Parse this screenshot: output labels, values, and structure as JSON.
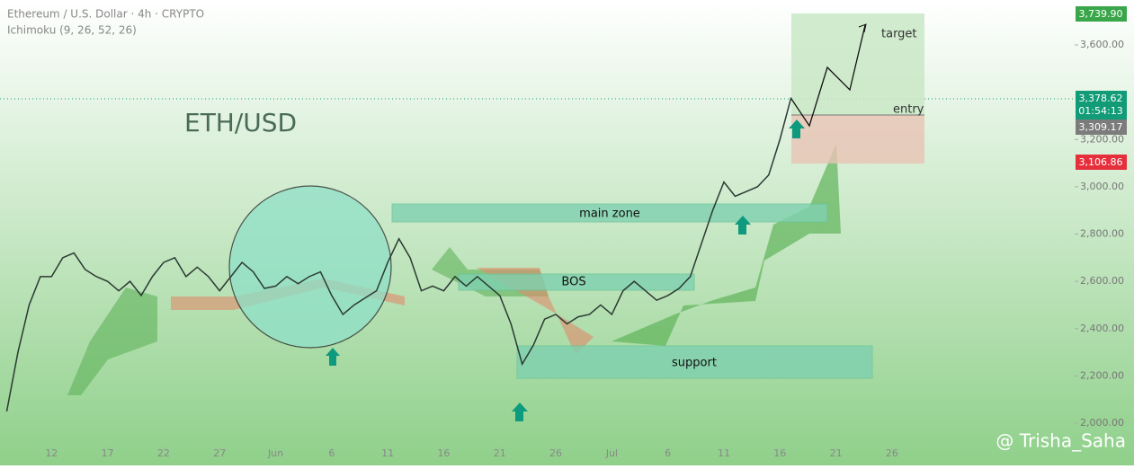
{
  "chart_data": {
    "type": "line",
    "title": "Ethereum / U.S. Dollar · 4h · CRYPTO",
    "subtitle": "Ichimoku (9, 26, 52, 26)",
    "annotations": [
      "ETH/USD",
      "main zone",
      "BOS",
      "support",
      "target",
      "entry"
    ],
    "price_labels": [
      "3,739.90",
      "3,378.62",
      "01:54:13",
      "3,309.17",
      "3,106.86"
    ],
    "watermark": "@ Trisha_Saha",
    "x": [
      -4,
      -3,
      -2,
      -1,
      0,
      1,
      2,
      3,
      4,
      5,
      6,
      7,
      8,
      9,
      10,
      11,
      12,
      13,
      14,
      15,
      16,
      17,
      18,
      19,
      20,
      21,
      22,
      23,
      24,
      25,
      26,
      27,
      28,
      29,
      30,
      31,
      32,
      33,
      34,
      35,
      36,
      37,
      38,
      39,
      40,
      41,
      42,
      43,
      44,
      45,
      46,
      47,
      48,
      49,
      50,
      51,
      52,
      53,
      54,
      55,
      56,
      57,
      58,
      59,
      60,
      61,
      62,
      63,
      64,
      65,
      66
    ],
    "series": [
      {
        "name": "ETH/USD",
        "color": "#2b3a33",
        "values": [
          2050,
          2300,
          2500,
          2620,
          2620,
          2700,
          2720,
          2650,
          2620,
          2600,
          2560,
          2600,
          2540,
          2620,
          2680,
          2700,
          2620,
          2660,
          2620,
          2560,
          2620,
          2680,
          2640,
          2570,
          2580,
          2620,
          2590,
          2620,
          2640,
          2540,
          2460,
          2500,
          2530,
          2560,
          2680,
          2780,
          2700,
          2560,
          2580,
          2560,
          2620,
          2580,
          2620,
          2580,
          2540,
          2420,
          2250,
          2330,
          2440,
          2460,
          2420,
          2450,
          2460,
          2500,
          2460,
          2560,
          2600,
          2560,
          2520,
          2540,
          2570,
          2620,
          2760,
          2900,
          3020,
          2960,
          2980,
          3000,
          3050,
          3200,
          3378
        ]
      }
    ],
    "xlim": [
      -4.6,
      91.3
    ],
    "xticks": [
      {
        "value": 0,
        "label": "12"
      },
      {
        "value": 5,
        "label": "17"
      },
      {
        "value": 10,
        "label": "22"
      },
      {
        "value": 15,
        "label": "27"
      },
      {
        "value": 20,
        "label": "Jun"
      },
      {
        "value": 25,
        "label": "6"
      },
      {
        "value": 30,
        "label": "11"
      },
      {
        "value": 35,
        "label": "16"
      },
      {
        "value": 40,
        "label": "21"
      },
      {
        "value": 45,
        "label": "26"
      },
      {
        "value": 50,
        "label": "Jul"
      },
      {
        "value": 55,
        "label": "6"
      },
      {
        "value": 60,
        "label": "11"
      },
      {
        "value": 65,
        "label": "16"
      },
      {
        "value": 70,
        "label": "21"
      },
      {
        "value": 75,
        "label": "26"
      }
    ],
    "ylim": [
      1830,
      3800
    ],
    "yticks": [
      {
        "value": 2000,
        "label": "2,000.00"
      },
      {
        "value": 2200,
        "label": "2,200.00"
      },
      {
        "value": 2400,
        "label": "2,400.00"
      },
      {
        "value": 2600,
        "label": "2,600.00"
      },
      {
        "value": 2800,
        "label": "2,800.00"
      },
      {
        "value": 3000,
        "label": "3,000.00"
      },
      {
        "value": 3200,
        "label": "3,200.00"
      },
      {
        "value": 3600,
        "label": "3,600.00"
      }
    ]
  }
}
